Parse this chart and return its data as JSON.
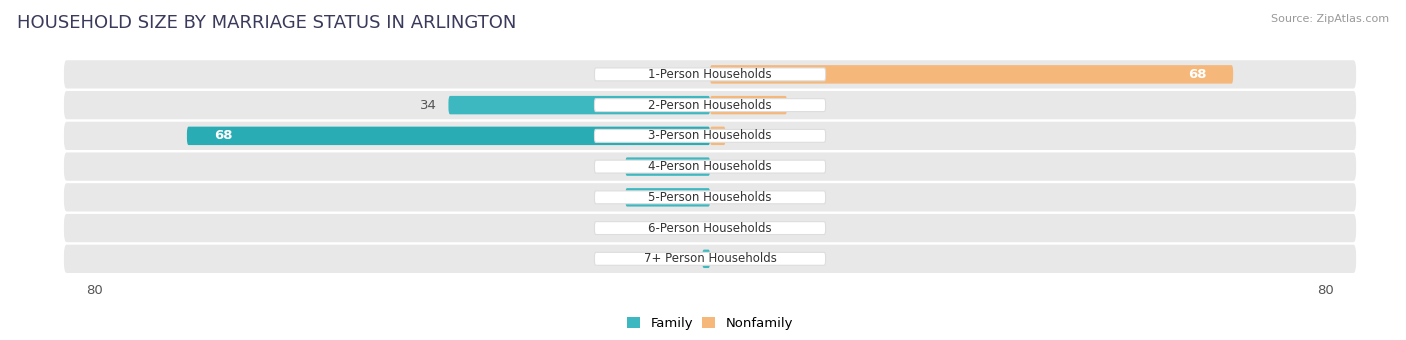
{
  "title": "HOUSEHOLD SIZE BY MARRIAGE STATUS IN ARLINGTON",
  "source": "Source: ZipAtlas.com",
  "categories": [
    "1-Person Households",
    "2-Person Households",
    "3-Person Households",
    "4-Person Households",
    "5-Person Households",
    "6-Person Households",
    "7+ Person Households"
  ],
  "family": [
    0,
    34,
    68,
    11,
    11,
    0,
    1
  ],
  "nonfamily": [
    68,
    10,
    2,
    0,
    0,
    0,
    0
  ],
  "family_color": "#3eb8c0",
  "nonfamily_color": "#f5b87a",
  "xlim": 80,
  "background_color": "#ffffff",
  "row_color": "#e8e8e8",
  "bar_height": 0.58,
  "label_fontsize": 9.5,
  "title_fontsize": 13,
  "title_color": "#3a3a5c",
  "source_color": "#999999"
}
